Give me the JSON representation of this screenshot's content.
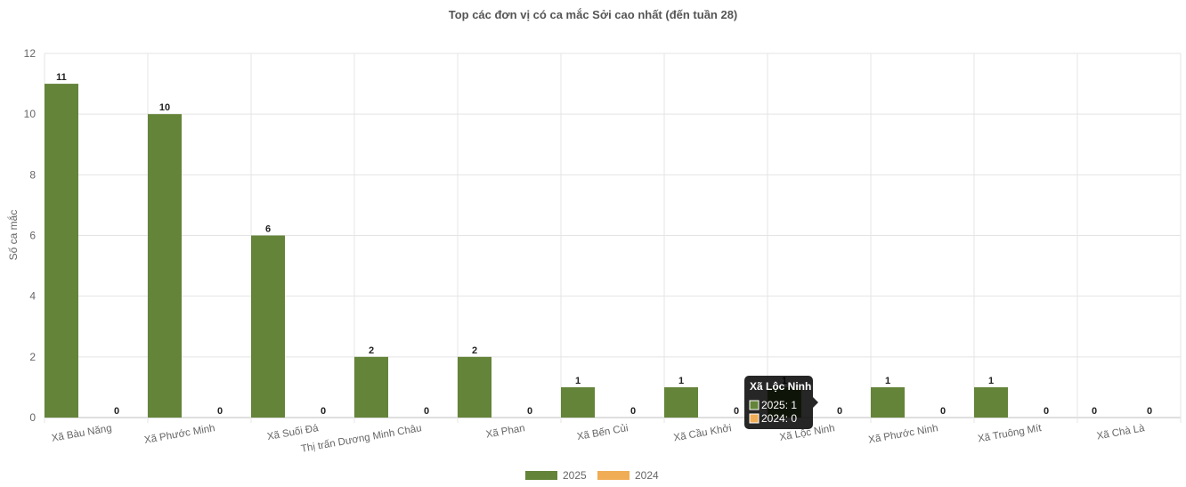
{
  "chart_data": {
    "type": "bar",
    "title": "Top các đơn vị có ca mắc Sởi cao nhất (đến tuần 28)",
    "ylabel": "Số ca mắc",
    "xlabel": "",
    "ylim": [
      0,
      12
    ],
    "yticks": [
      0,
      2,
      4,
      6,
      8,
      10,
      12
    ],
    "grid": true,
    "legend_position": "bottom",
    "categories": [
      "Xã Bàu Năng",
      "Xã Phước Minh",
      "Xã Suối Đá",
      "Thị trấn Dương Minh Châu",
      "Xã Phan",
      "Xã Bến Củi",
      "Xã Cầu Khởi",
      "Xã Lộc Ninh",
      "Xã Phước Ninh",
      "Xã Truông Mít",
      "Xã Chà Là"
    ],
    "series": [
      {
        "name": "2025",
        "color": "#648439",
        "values": [
          11,
          10,
          6,
          2,
          2,
          1,
          1,
          1,
          1,
          1,
          0
        ]
      },
      {
        "name": "2024",
        "color": "#f0ad56",
        "values": [
          0,
          0,
          0,
          0,
          0,
          0,
          0,
          0,
          0,
          0,
          0
        ]
      }
    ],
    "tooltip": {
      "title": "Xã Lộc Ninh",
      "lines": [
        "2025: 1",
        "2024: 0"
      ]
    }
  }
}
